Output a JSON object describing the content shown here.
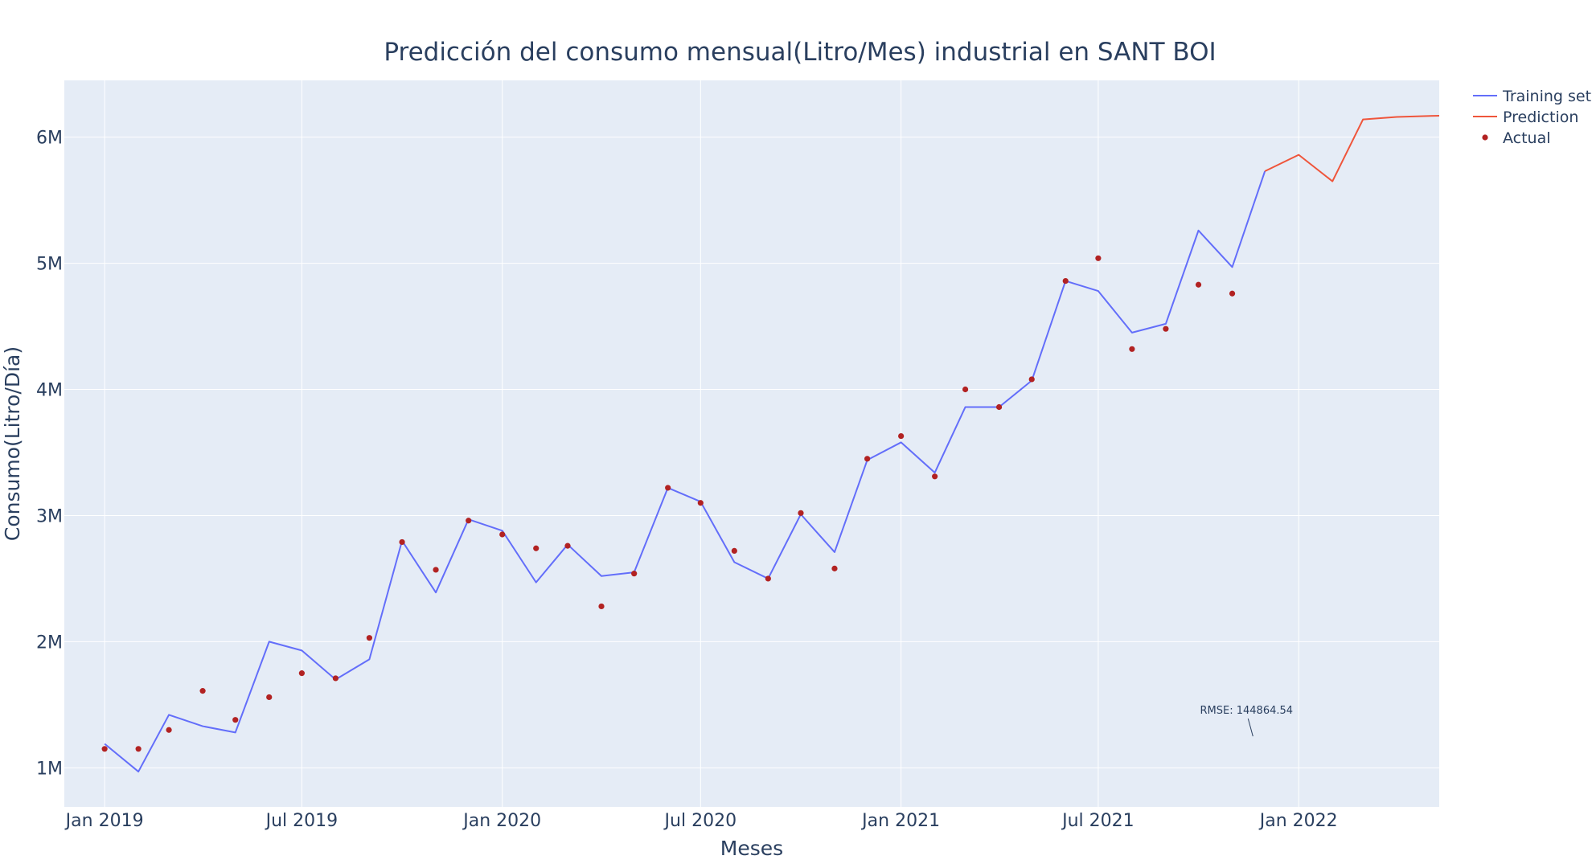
{
  "chart_data": {
    "type": "line",
    "title": "Predicción del consumo mensual(Litro/Mes) industrial en SANT BOI",
    "xlabel": "Meses",
    "ylabel": "Consumo(Litro/Día)",
    "x_range": [
      "2018-11-25",
      "2022-05-10"
    ],
    "ylim": [
      690000,
      6450000
    ],
    "x_ticks": [
      {
        "date": "2019-01-01",
        "label": "Jan 2019"
      },
      {
        "date": "2019-07-01",
        "label": "Jul 2019"
      },
      {
        "date": "2020-01-01",
        "label": "Jan 2020"
      },
      {
        "date": "2020-07-01",
        "label": "Jul 2020"
      },
      {
        "date": "2021-01-01",
        "label": "Jan 2021"
      },
      {
        "date": "2021-07-01",
        "label": "Jul 2021"
      },
      {
        "date": "2022-01-01",
        "label": "Jan 2022"
      }
    ],
    "y_ticks": [
      {
        "value": 1000000,
        "label": "1M"
      },
      {
        "value": 2000000,
        "label": "2M"
      },
      {
        "value": 3000000,
        "label": "3M"
      },
      {
        "value": 4000000,
        "label": "4M"
      },
      {
        "value": 5000000,
        "label": "5M"
      },
      {
        "value": 6000000,
        "label": "6M"
      }
    ],
    "grid": true,
    "legend_position": "top-right",
    "series": [
      {
        "name": "Training set",
        "mode": "line",
        "color": "#636efa",
        "x": [
          "2019-01-01",
          "2019-02-01",
          "2019-03-01",
          "2019-04-01",
          "2019-05-01",
          "2019-06-01",
          "2019-07-01",
          "2019-08-01",
          "2019-09-01",
          "2019-10-01",
          "2019-11-01",
          "2019-12-01",
          "2020-01-01",
          "2020-02-01",
          "2020-03-01",
          "2020-04-01",
          "2020-05-01",
          "2020-06-01",
          "2020-07-01",
          "2020-08-01",
          "2020-09-01",
          "2020-10-01",
          "2020-11-01",
          "2020-12-01",
          "2021-01-01",
          "2021-02-01",
          "2021-03-01",
          "2021-04-01",
          "2021-05-01",
          "2021-06-01",
          "2021-07-01",
          "2021-08-01",
          "2021-09-01",
          "2021-10-01",
          "2021-11-01",
          "2021-12-01"
        ],
        "y": [
          1190000,
          970000,
          1420000,
          1330000,
          1280000,
          2000000,
          1930000,
          1700000,
          1860000,
          2800000,
          2390000,
          2970000,
          2880000,
          2470000,
          2770000,
          2520000,
          2550000,
          3220000,
          3110000,
          2630000,
          2500000,
          3010000,
          2710000,
          3440000,
          3580000,
          3340000,
          3860000,
          3860000,
          4070000,
          4860000,
          4780000,
          4450000,
          4520000,
          5260000,
          4970000,
          5730000
        ]
      },
      {
        "name": "Prediction",
        "mode": "line",
        "color": "#ef553b",
        "x": [
          "2021-12-01",
          "2022-01-01",
          "2022-02-01",
          "2022-03-01",
          "2022-04-01",
          "2022-05-10"
        ],
        "y": [
          5730000,
          5860000,
          5650000,
          6140000,
          6160000,
          6170000
        ]
      },
      {
        "name": "Actual",
        "mode": "markers",
        "color": "#b22222",
        "x": [
          "2019-01-01",
          "2019-02-01",
          "2019-03-01",
          "2019-04-01",
          "2019-05-01",
          "2019-06-01",
          "2019-07-01",
          "2019-08-01",
          "2019-09-01",
          "2019-10-01",
          "2019-11-01",
          "2019-12-01",
          "2020-01-01",
          "2020-02-01",
          "2020-03-01",
          "2020-04-01",
          "2020-05-01",
          "2020-06-01",
          "2020-07-01",
          "2020-08-01",
          "2020-09-01",
          "2020-10-01",
          "2020-11-01",
          "2020-12-01",
          "2021-01-01",
          "2021-02-01",
          "2021-03-01",
          "2021-04-01",
          "2021-05-01",
          "2021-06-01",
          "2021-07-01",
          "2021-08-01",
          "2021-09-01",
          "2021-10-01",
          "2021-11-01"
        ],
        "y": [
          1150000,
          1150000,
          1300000,
          1610000,
          1380000,
          1560000,
          1750000,
          1710000,
          2030000,
          2790000,
          2570000,
          2960000,
          2850000,
          2740000,
          2760000,
          2280000,
          2540000,
          3220000,
          3100000,
          2720000,
          2500000,
          3020000,
          2580000,
          3450000,
          3630000,
          3310000,
          4000000,
          3860000,
          4080000,
          4860000,
          5040000,
          4320000,
          4480000,
          4830000,
          4760000
        ]
      }
    ],
    "annotations": [
      {
        "text": "RMSE: 144864.54",
        "x": "2021-11-20",
        "y": 1250000
      }
    ]
  },
  "colors": {
    "plot_background": "#e5ecf6",
    "gridline": "#ffffff",
    "text": "#2a3f5f"
  }
}
